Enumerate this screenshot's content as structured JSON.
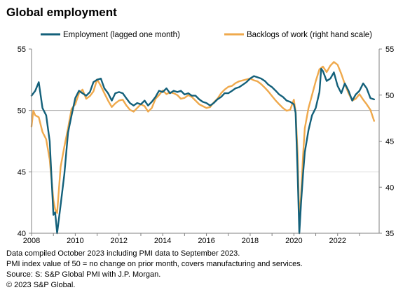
{
  "chart_data": {
    "type": "line",
    "title": "Global employment",
    "grid": "horizontal at 45, 50 and 55 (left scale)",
    "legend_placement": "top",
    "x_ticks": [
      "2008",
      "2010",
      "2012",
      "2014",
      "2016",
      "2018",
      "2020",
      "2022"
    ],
    "xlim": [
      2008.0,
      2023.9
    ],
    "left_axis": {
      "ylim": [
        40,
        55
      ],
      "ticks": [
        "40",
        "45",
        "50",
        "55"
      ]
    },
    "right_axis": {
      "ylim": [
        35,
        55
      ],
      "ticks": [
        "35",
        "40",
        "45",
        "50",
        "55"
      ]
    },
    "series": [
      {
        "name": "Employment (lagged one month)",
        "axis": "left",
        "color": "#13607a",
        "points": [
          [
            2008.0,
            51.2
          ],
          [
            2008.17,
            51.6
          ],
          [
            2008.33,
            52.3
          ],
          [
            2008.5,
            50.2
          ],
          [
            2008.67,
            49.6
          ],
          [
            2008.83,
            47.5
          ],
          [
            2009.0,
            41.5
          ],
          [
            2009.08,
            41.7
          ],
          [
            2009.17,
            40.0
          ],
          [
            2009.33,
            42.3
          ],
          [
            2009.5,
            44.8
          ],
          [
            2009.67,
            48.2
          ],
          [
            2009.83,
            49.6
          ],
          [
            2010.0,
            51.0
          ],
          [
            2010.17,
            51.6
          ],
          [
            2010.33,
            51.4
          ],
          [
            2010.5,
            51.2
          ],
          [
            2010.67,
            51.5
          ],
          [
            2010.83,
            52.3
          ],
          [
            2011.0,
            52.5
          ],
          [
            2011.17,
            52.6
          ],
          [
            2011.33,
            51.8
          ],
          [
            2011.5,
            51.4
          ],
          [
            2011.67,
            50.8
          ],
          [
            2011.83,
            51.4
          ],
          [
            2012.0,
            51.5
          ],
          [
            2012.17,
            51.4
          ],
          [
            2012.33,
            51.0
          ],
          [
            2012.5,
            50.6
          ],
          [
            2012.67,
            50.4
          ],
          [
            2012.83,
            50.6
          ],
          [
            2013.0,
            50.5
          ],
          [
            2013.17,
            50.8
          ],
          [
            2013.33,
            50.4
          ],
          [
            2013.5,
            50.7
          ],
          [
            2013.67,
            51.1
          ],
          [
            2013.83,
            51.6
          ],
          [
            2014.0,
            51.5
          ],
          [
            2014.17,
            51.8
          ],
          [
            2014.33,
            51.4
          ],
          [
            2014.5,
            51.6
          ],
          [
            2014.67,
            51.5
          ],
          [
            2014.83,
            51.6
          ],
          [
            2015.0,
            51.3
          ],
          [
            2015.17,
            51.4
          ],
          [
            2015.33,
            51.2
          ],
          [
            2015.5,
            51.2
          ],
          [
            2015.67,
            50.9
          ],
          [
            2015.83,
            50.7
          ],
          [
            2016.0,
            50.6
          ],
          [
            2016.17,
            50.4
          ],
          [
            2016.33,
            50.6
          ],
          [
            2016.5,
            50.9
          ],
          [
            2016.67,
            51.1
          ],
          [
            2016.83,
            51.4
          ],
          [
            2017.0,
            51.4
          ],
          [
            2017.17,
            51.6
          ],
          [
            2017.33,
            51.8
          ],
          [
            2017.5,
            51.9
          ],
          [
            2017.67,
            52.1
          ],
          [
            2017.83,
            52.3
          ],
          [
            2018.0,
            52.6
          ],
          [
            2018.17,
            52.8
          ],
          [
            2018.33,
            52.7
          ],
          [
            2018.5,
            52.6
          ],
          [
            2018.67,
            52.4
          ],
          [
            2018.83,
            52.1
          ],
          [
            2019.0,
            51.9
          ],
          [
            2019.17,
            51.6
          ],
          [
            2019.33,
            51.3
          ],
          [
            2019.5,
            51.1
          ],
          [
            2019.67,
            50.8
          ],
          [
            2019.83,
            50.7
          ],
          [
            2020.0,
            50.5
          ],
          [
            2020.08,
            49.8
          ],
          [
            2020.17,
            45.0
          ],
          [
            2020.25,
            40.0
          ],
          [
            2020.33,
            42.5
          ],
          [
            2020.42,
            44.8
          ],
          [
            2020.5,
            46.6
          ],
          [
            2020.67,
            48.4
          ],
          [
            2020.83,
            49.6
          ],
          [
            2021.0,
            50.2
          ],
          [
            2021.17,
            51.5
          ],
          [
            2021.25,
            53.4
          ],
          [
            2021.33,
            53.2
          ],
          [
            2021.5,
            52.4
          ],
          [
            2021.67,
            52.6
          ],
          [
            2021.83,
            53.1
          ],
          [
            2022.0,
            52.0
          ],
          [
            2022.17,
            51.4
          ],
          [
            2022.33,
            52.2
          ],
          [
            2022.5,
            51.6
          ],
          [
            2022.67,
            50.8
          ],
          [
            2022.83,
            51.3
          ],
          [
            2023.0,
            51.6
          ],
          [
            2023.17,
            52.2
          ],
          [
            2023.33,
            51.8
          ],
          [
            2023.5,
            51.0
          ],
          [
            2023.67,
            50.9
          ]
        ]
      },
      {
        "name": "Backlogs of work (right hand scale)",
        "axis": "right",
        "color": "#efa94c",
        "points": [
          [
            2008.0,
            46.6
          ],
          [
            2008.08,
            48.3
          ],
          [
            2008.17,
            47.8
          ],
          [
            2008.33,
            47.6
          ],
          [
            2008.5,
            46.0
          ],
          [
            2008.67,
            45.2
          ],
          [
            2008.83,
            43.0
          ],
          [
            2009.0,
            38.6
          ],
          [
            2009.08,
            37.6
          ],
          [
            2009.17,
            37.2
          ],
          [
            2009.33,
            42.2
          ],
          [
            2009.5,
            44.4
          ],
          [
            2009.67,
            46.4
          ],
          [
            2009.83,
            48.5
          ],
          [
            2010.0,
            49.0
          ],
          [
            2010.17,
            50.2
          ],
          [
            2010.33,
            50.6
          ],
          [
            2010.5,
            49.6
          ],
          [
            2010.67,
            49.9
          ],
          [
            2010.83,
            50.4
          ],
          [
            2011.0,
            51.7
          ],
          [
            2011.17,
            51.0
          ],
          [
            2011.33,
            50.2
          ],
          [
            2011.5,
            49.4
          ],
          [
            2011.67,
            48.7
          ],
          [
            2011.83,
            49.1
          ],
          [
            2012.0,
            49.4
          ],
          [
            2012.17,
            49.5
          ],
          [
            2012.33,
            48.9
          ],
          [
            2012.5,
            48.4
          ],
          [
            2012.67,
            48.2
          ],
          [
            2012.83,
            48.6
          ],
          [
            2013.0,
            49.0
          ],
          [
            2013.17,
            48.8
          ],
          [
            2013.33,
            48.2
          ],
          [
            2013.5,
            48.6
          ],
          [
            2013.67,
            49.6
          ],
          [
            2013.83,
            50.0
          ],
          [
            2014.0,
            50.5
          ],
          [
            2014.17,
            50.1
          ],
          [
            2014.33,
            50.3
          ],
          [
            2014.5,
            50.2
          ],
          [
            2014.67,
            50.0
          ],
          [
            2014.83,
            49.6
          ],
          [
            2015.0,
            49.7
          ],
          [
            2015.17,
            50.0
          ],
          [
            2015.33,
            49.8
          ],
          [
            2015.5,
            49.4
          ],
          [
            2015.67,
            49.0
          ],
          [
            2015.83,
            48.8
          ],
          [
            2016.0,
            48.6
          ],
          [
            2016.17,
            48.7
          ],
          [
            2016.33,
            49.2
          ],
          [
            2016.5,
            49.6
          ],
          [
            2016.67,
            50.2
          ],
          [
            2016.83,
            50.6
          ],
          [
            2017.0,
            50.9
          ],
          [
            2017.17,
            51.0
          ],
          [
            2017.33,
            51.3
          ],
          [
            2017.5,
            51.5
          ],
          [
            2017.67,
            51.6
          ],
          [
            2017.83,
            51.7
          ],
          [
            2018.0,
            51.8
          ],
          [
            2018.17,
            51.6
          ],
          [
            2018.33,
            51.5
          ],
          [
            2018.5,
            51.2
          ],
          [
            2018.67,
            50.8
          ],
          [
            2018.83,
            50.4
          ],
          [
            2019.0,
            49.9
          ],
          [
            2019.17,
            49.4
          ],
          [
            2019.33,
            49.0
          ],
          [
            2019.5,
            48.6
          ],
          [
            2019.67,
            48.3
          ],
          [
            2019.83,
            48.4
          ],
          [
            2020.0,
            49.5
          ],
          [
            2020.08,
            48.2
          ],
          [
            2020.17,
            43.8
          ],
          [
            2020.25,
            36.2
          ],
          [
            2020.33,
            39.2
          ],
          [
            2020.42,
            43.4
          ],
          [
            2020.5,
            46.4
          ],
          [
            2020.67,
            48.6
          ],
          [
            2020.83,
            50.0
          ],
          [
            2021.0,
            51.5
          ],
          [
            2021.17,
            52.8
          ],
          [
            2021.33,
            53.1
          ],
          [
            2021.5,
            52.5
          ],
          [
            2021.67,
            53.2
          ],
          [
            2021.83,
            53.6
          ],
          [
            2022.0,
            53.3
          ],
          [
            2022.17,
            52.3
          ],
          [
            2022.33,
            51.2
          ],
          [
            2022.5,
            50.2
          ],
          [
            2022.67,
            49.4
          ],
          [
            2022.83,
            49.6
          ],
          [
            2023.0,
            50.1
          ],
          [
            2023.17,
            49.5
          ],
          [
            2023.33,
            49.0
          ],
          [
            2023.5,
            48.4
          ],
          [
            2023.67,
            47.2
          ]
        ]
      }
    ]
  },
  "notes": [
    "Data compiled October 2023 including PMI data to September 2023.",
    "PMI index value of 50 = no change on prior month, covers manufacturing and services.",
    "Source: S: S&P Global PMI with J.P. Morgan.",
    "© 2023 S&P Global."
  ]
}
